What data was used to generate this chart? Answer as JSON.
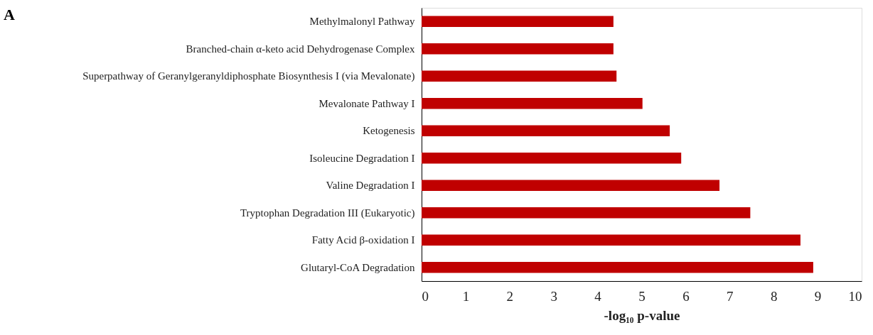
{
  "chart_data": {
    "type": "bar",
    "orientation": "horizontal",
    "title": "A",
    "xlabel": "-log₁₀ p-value",
    "categories": [
      "Methylmalonyl Pathway",
      "Branched-chain α-keto acid Dehydrogenase Complex",
      "Superpathway of Geranylgeranyldiphosphate Biosynthesis I (via Mevalonate)",
      "Mevalonate Pathway I",
      "Ketogenesis",
      "Isoleucine Degradation I",
      "Valine Degradation I",
      "Tryptophan Degradation III (Eukaryotic)",
      "Fatty Acid β-oxidation I",
      "Glutaryl-CoA Degradation"
    ],
    "values": [
      4.36,
      4.36,
      4.43,
      5.02,
      5.64,
      5.9,
      6.77,
      7.47,
      8.61,
      8.9
    ],
    "color": "#c00000",
    "xlim": [
      0,
      10
    ],
    "xticks": [
      0,
      1,
      2,
      3,
      4,
      5,
      6,
      7,
      8,
      9,
      10
    ],
    "grid": false
  }
}
